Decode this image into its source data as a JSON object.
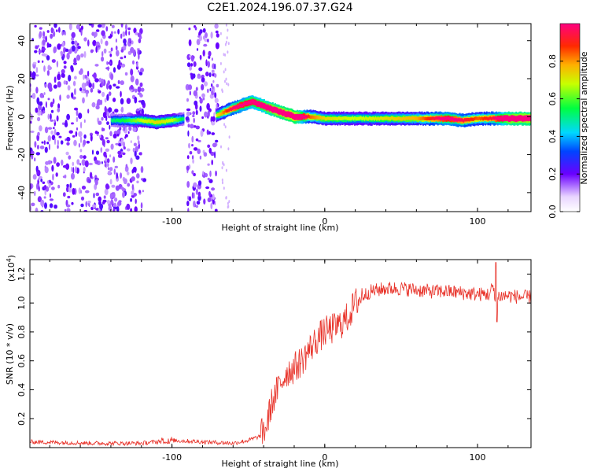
{
  "figure": {
    "title": "C2E1.2024.196.07.37.G24"
  },
  "chart_data": [
    {
      "type": "heatmap",
      "title": "C2E1.2024.196.07.37.G24",
      "xlabel": "Height of straight line (km)",
      "ylabel": "Frequency (Hz)",
      "xlim": [
        -193,
        135
      ],
      "ylim": [
        -50,
        49
      ],
      "xticks": [
        -100,
        0,
        100
      ],
      "xtick_labels": [
        "-100",
        "0",
        "100"
      ],
      "yticks": [
        -40,
        -20,
        0,
        20,
        40
      ],
      "ytick_labels": [
        "-40",
        "-20",
        "0",
        "20",
        "40"
      ],
      "grid": false,
      "colorbar": {
        "label": "Normalized spectral amplitude",
        "range": [
          0,
          1
        ],
        "ticks": [
          0.0,
          0.2,
          0.4,
          0.6,
          0.8
        ],
        "tick_labels": [
          "0.0",
          "0.2",
          "0.4",
          "0.6",
          "0.8"
        ],
        "colormap": "rainbow"
      },
      "ridge": {
        "description_values_x": [
          -140,
          -130,
          -120,
          -110,
          -100,
          -90,
          -80,
          -70,
          -62,
          -55,
          -48,
          -42,
          -35,
          -28,
          -20,
          -10,
          0,
          20,
          40,
          60,
          80,
          90,
          100,
          110,
          120,
          135
        ],
        "frequency_hz": [
          -2,
          -2,
          -2,
          -3,
          -2,
          -1,
          0,
          1,
          4,
          6,
          8,
          6,
          4,
          2,
          0,
          0,
          -1,
          -1,
          -1,
          -1,
          -1,
          -2,
          -1,
          -1,
          -1,
          -1
        ],
        "amplitude": [
          0.2,
          0.25,
          0.35,
          0.4,
          0.35,
          0.15,
          0.1,
          0.4,
          0.6,
          0.7,
          0.75,
          0.8,
          0.9,
          0.95,
          1.0,
          0.5,
          0.4,
          0.35,
          0.4,
          0.45,
          0.7,
          0.6,
          0.5,
          0.6,
          0.9,
          0.95
        ]
      },
      "noise_bands_x": [
        [
          -193,
          -118
        ],
        [
          -90,
          -70
        ]
      ]
    },
    {
      "type": "line",
      "xlabel": "Height of straight line (km)",
      "ylabel": "SNR (10 * v/v)",
      "y_multiplier_label": "(x10",
      "y_multiplier_exponent": "4",
      "y_multiplier_close": ")",
      "xlim": [
        -193,
        135
      ],
      "ylim": [
        0,
        1.3
      ],
      "xticks": [
        -100,
        0,
        100
      ],
      "xtick_labels": [
        "-100",
        "0",
        "100"
      ],
      "yticks": [
        0.2,
        0.4,
        0.6,
        0.8,
        1.0,
        1.2
      ],
      "ytick_labels": [
        "0.2",
        "0.4",
        "0.6",
        "0.8",
        "1.0",
        "1.2"
      ],
      "grid": false,
      "series_color": "#e8332a",
      "x": [
        -193,
        -150,
        -120,
        -100,
        -80,
        -60,
        -50,
        -42,
        -38,
        -35,
        -30,
        -25,
        -20,
        -15,
        -10,
        -5,
        0,
        5,
        10,
        15,
        20,
        25,
        30,
        40,
        50,
        60,
        70,
        80,
        90,
        100,
        108,
        110,
        112,
        114,
        120,
        130,
        135
      ],
      "values": [
        0.04,
        0.03,
        0.03,
        0.05,
        0.04,
        0.03,
        0.05,
        0.08,
        0.15,
        0.3,
        0.42,
        0.52,
        0.55,
        0.6,
        0.68,
        0.75,
        0.8,
        0.82,
        0.85,
        0.9,
        1.0,
        1.05,
        1.08,
        1.1,
        1.1,
        1.09,
        1.08,
        1.08,
        1.07,
        1.06,
        1.06,
        1.12,
        0.97,
        1.05,
        1.05,
        1.04,
        1.04
      ]
    }
  ],
  "colors": {
    "line": "#e8332a",
    "axis": "#000000",
    "background": "#ffffff"
  }
}
